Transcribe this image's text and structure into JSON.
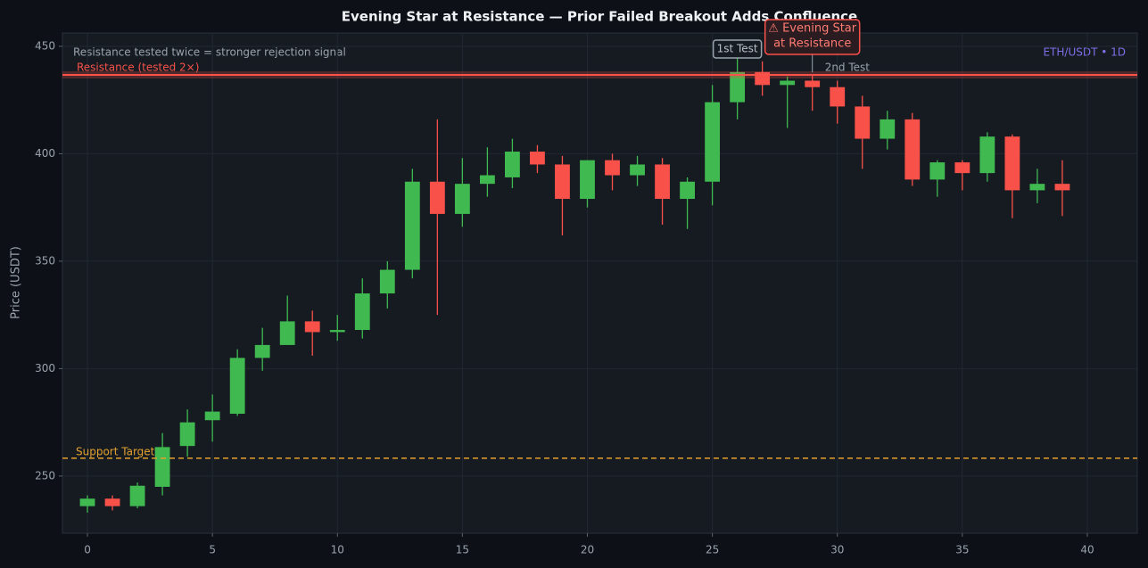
{
  "chart_data": {
    "type": "candlestick",
    "title": "Evening Star at Resistance — Prior Failed Breakout Adds Confluence",
    "y_label": "Price (USDT)",
    "x": [
      0,
      1,
      2,
      3,
      4,
      5,
      6,
      7,
      8,
      9,
      10,
      11,
      12,
      13,
      14,
      15,
      16,
      17,
      18,
      19,
      20,
      21,
      22,
      23,
      24,
      25,
      26,
      27,
      28,
      29,
      30,
      31,
      32,
      33,
      34,
      35,
      36,
      37,
      38,
      39
    ],
    "open": [
      236,
      239.5,
      236,
      245,
      264,
      276,
      279,
      305,
      311,
      322,
      317,
      318,
      335,
      346,
      387,
      372,
      386,
      389,
      401,
      395,
      379,
      397,
      390,
      395,
      379,
      387,
      424,
      438,
      432,
      434,
      431,
      422,
      407,
      416,
      388,
      396,
      391,
      408,
      383,
      386
    ],
    "high": [
      241,
      241,
      247,
      270,
      281,
      288,
      309,
      319,
      334,
      327,
      325,
      342,
      350,
      393,
      416,
      398,
      403,
      407,
      404,
      399,
      397,
      400,
      399,
      398,
      389,
      432,
      446,
      443,
      436,
      437,
      434,
      427,
      420,
      419,
      397,
      397,
      410,
      409,
      393,
      397
    ],
    "low": [
      233,
      234,
      235,
      241,
      259,
      266,
      278,
      299,
      311,
      306,
      313,
      314,
      328,
      342,
      325,
      366,
      380,
      384,
      391,
      362,
      375,
      383,
      385,
      367,
      365,
      376,
      416,
      427,
      412,
      420,
      414,
      393,
      402,
      385,
      380,
      383,
      387,
      370,
      377,
      371
    ],
    "close": [
      239.5,
      236,
      245.5,
      263.5,
      275,
      280,
      305,
      311,
      322,
      317,
      318,
      335,
      346,
      387,
      372,
      386,
      390,
      401,
      395,
      379,
      397,
      390,
      395,
      379,
      387,
      424,
      438,
      432,
      434,
      431,
      422,
      407,
      416,
      388,
      396,
      391,
      408,
      383,
      386,
      383
    ],
    "up_color": "#3fb950",
    "down_color": "#f85149",
    "xlim": [
      -1,
      42
    ],
    "ylim": [
      223.4,
      456.2
    ],
    "xticks": [
      0,
      5,
      10,
      15,
      20,
      25,
      30,
      35,
      40
    ],
    "yticks": [
      250,
      300,
      350,
      400,
      450
    ],
    "grid": true,
    "resistance": {
      "value": 436.7,
      "label": "Resistance (tested 2×)",
      "color": "#f85149"
    },
    "support": {
      "value": 258.3,
      "label": "Support Target",
      "color": "#e3a02f"
    },
    "note": "Resistance tested twice = stronger rejection signal",
    "symbol": "ETH/USDT • 1D",
    "first_test": "1st Test",
    "second_test": "2nd Test",
    "pattern_label": [
      "⚠ Evening Star",
      "at Resistance"
    ]
  }
}
